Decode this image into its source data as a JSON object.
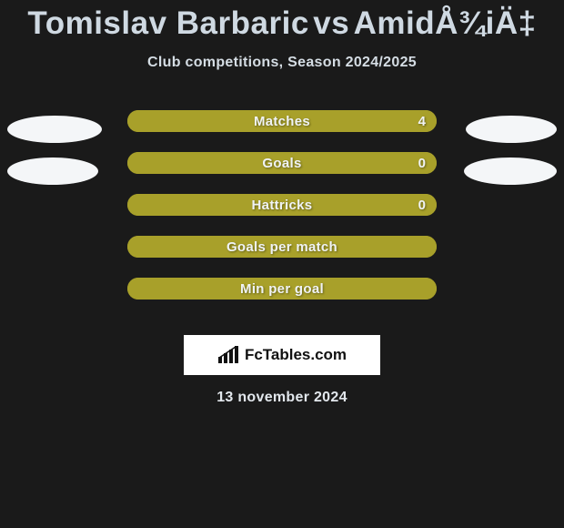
{
  "title": {
    "player1": "Tomislav Barbaric",
    "vs": "vs",
    "player2": "AmidÅ¾iÄ‡"
  },
  "subtitle": "Club competitions, Season 2024/2025",
  "colors": {
    "bar_bg": "#a8a02a",
    "bar_fill": "#a8a02a",
    "blob": "#f4f6f8",
    "text_light": "#cfd9e2",
    "background": "#1a1a1a"
  },
  "blob_sizes": {
    "row0_left_w": 104,
    "row0_right_w": 100,
    "row1_left_w": 100,
    "row1_right_w": 102
  },
  "rows": [
    {
      "label": "Matches",
      "value": "4",
      "show_value": true,
      "fill_pct": 100,
      "show_blobs": true
    },
    {
      "label": "Goals",
      "value": "0",
      "show_value": true,
      "fill_pct": 100,
      "show_blobs": true
    },
    {
      "label": "Hattricks",
      "value": "0",
      "show_value": true,
      "fill_pct": 100,
      "show_blobs": false
    },
    {
      "label": "Goals per match",
      "value": "",
      "show_value": false,
      "fill_pct": 100,
      "show_blobs": false
    },
    {
      "label": "Min per goal",
      "value": "",
      "show_value": false,
      "fill_pct": 100,
      "show_blobs": false
    }
  ],
  "logo_text": "FcTables.com",
  "date": "13 november 2024"
}
